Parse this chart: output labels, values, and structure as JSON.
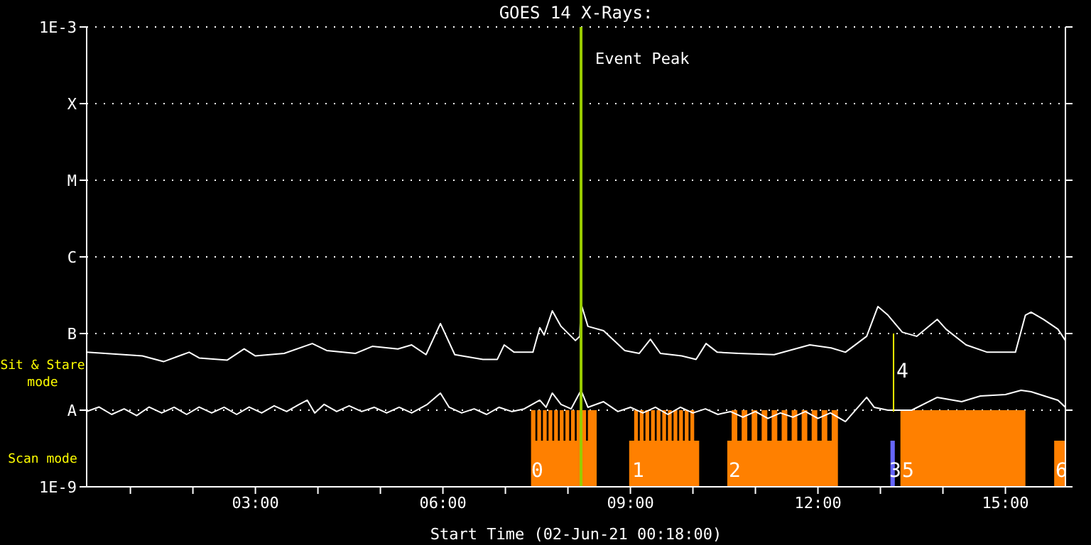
{
  "chart_data": {
    "type": "line",
    "title": "GOES 14 X-Rays:",
    "xlabel": "Start Time (02-Jun-21 00:18:00)",
    "xlim": [
      0.3,
      15.96
    ],
    "xticks": [
      {
        "value": 1,
        "label": null
      },
      {
        "value": 2,
        "label": null
      },
      {
        "value": 3,
        "label": "03:00"
      },
      {
        "value": 4,
        "label": null
      },
      {
        "value": 5,
        "label": null
      },
      {
        "value": 6,
        "label": "06:00"
      },
      {
        "value": 7,
        "label": null
      },
      {
        "value": 8,
        "label": null
      },
      {
        "value": 9,
        "label": "09:00"
      },
      {
        "value": 10,
        "label": null
      },
      {
        "value": 11,
        "label": null
      },
      {
        "value": 12,
        "label": "12:00"
      },
      {
        "value": 13,
        "label": null
      },
      {
        "value": 14,
        "label": null
      },
      {
        "value": 15,
        "label": "15:00"
      }
    ],
    "ylim": [
      1e-09,
      0.001
    ],
    "yticks": [
      {
        "value": 1e-09,
        "label": "1E-9"
      },
      {
        "value": 1e-08,
        "label": "A"
      },
      {
        "value": 1e-07,
        "label": "B"
      },
      {
        "value": 1e-06,
        "label": "C"
      },
      {
        "value": 1e-05,
        "label": "M"
      },
      {
        "value": 0.0001,
        "label": "X"
      },
      {
        "value": 0.001,
        "label": "1E-3"
      }
    ],
    "log": true,
    "grid": "y",
    "legend": false,
    "series": [
      {
        "color": "#ffffff",
        "x": [
          0.3,
          1.19,
          1.53,
          1.94,
          2.1,
          2.55,
          2.82,
          3.0,
          3.46,
          3.91,
          4.14,
          4.6,
          4.87,
          5.28,
          5.5,
          5.73,
          5.96,
          6.19,
          6.64,
          6.87,
          6.98,
          7.14,
          7.44,
          7.55,
          7.62,
          7.75,
          7.89,
          8.12,
          8.19,
          8.21,
          8.32,
          8.57,
          8.91,
          9.14,
          9.32,
          9.48,
          9.82,
          10.05,
          10.21,
          10.39,
          10.73,
          11.3,
          11.87,
          12.21,
          12.44,
          12.78,
          12.96,
          13.12,
          13.35,
          13.58,
          13.91,
          14.05,
          14.37,
          14.71,
          15.16,
          15.32,
          15.41,
          15.61,
          15.84,
          15.96
        ],
        "values": [
          5.7e-08,
          5.1e-08,
          4.3e-08,
          5.7e-08,
          4.8e-08,
          4.5e-08,
          6.3e-08,
          5.1e-08,
          5.5e-08,
          7.4e-08,
          6e-08,
          5.5e-08,
          6.8e-08,
          6.3e-08,
          7.1e-08,
          5.3e-08,
          1.35e-07,
          5.3e-08,
          4.6e-08,
          4.6e-08,
          7.1e-08,
          5.7e-08,
          5.7e-08,
          1.19e-07,
          9.6e-08,
          1.98e-07,
          1.24e-07,
          8.1e-08,
          9.2e-08,
          2.45e-07,
          1.24e-07,
          1.09e-07,
          6e-08,
          5.5e-08,
          8.4e-08,
          5.5e-08,
          5.1e-08,
          4.6e-08,
          7.4e-08,
          5.7e-08,
          5.5e-08,
          5.3e-08,
          7.1e-08,
          6.5e-08,
          5.7e-08,
          9.2e-08,
          2.25e-07,
          1.74e-07,
          1.04e-07,
          9.2e-08,
          1.53e-07,
          1.14e-07,
          7.1e-08,
          5.7e-08,
          5.7e-08,
          1.74e-07,
          1.9e-07,
          1.53e-07,
          1.14e-07,
          8.1e-08
        ]
      },
      {
        "color": "#ffffff",
        "x": [
          0.3,
          0.5,
          0.7,
          0.9,
          1.1,
          1.3,
          1.5,
          1.7,
          1.9,
          2.1,
          2.3,
          2.5,
          2.7,
          2.9,
          3.1,
          3.3,
          3.5,
          3.7,
          3.83,
          3.95,
          4.1,
          4.3,
          4.5,
          4.7,
          4.9,
          5.1,
          5.3,
          5.5,
          5.75,
          5.96,
          6.1,
          6.3,
          6.5,
          6.7,
          6.9,
          7.1,
          7.3,
          7.55,
          7.65,
          7.75,
          7.89,
          8.05,
          8.21,
          8.32,
          8.57,
          8.8,
          9.0,
          9.2,
          9.4,
          9.6,
          9.8,
          10.0,
          10.2,
          10.4,
          10.6,
          10.8,
          11.0,
          11.2,
          11.4,
          11.6,
          11.8,
          12.0,
          12.2,
          12.44,
          12.78,
          12.9,
          13.12,
          13.5,
          13.91,
          14.3,
          14.6,
          15.0,
          15.25,
          15.41,
          15.84,
          15.96
        ],
        "values": [
          9.6e-09,
          1.1e-08,
          8.8e-09,
          1.04e-08,
          8.5e-09,
          1.1e-08,
          9.2e-09,
          1.09e-08,
          8.8e-09,
          1.1e-08,
          9.2e-09,
          1.09e-08,
          8.8e-09,
          1.1e-08,
          9.2e-09,
          1.14e-08,
          9.6e-09,
          1.19e-08,
          1.35e-08,
          9.2e-09,
          1.19e-08,
          9.6e-09,
          1.14e-08,
          9.6e-09,
          1.09e-08,
          9.2e-09,
          1.09e-08,
          9.2e-09,
          1.19e-08,
          1.67e-08,
          1.09e-08,
          9.2e-09,
          1.04e-08,
          8.8e-09,
          1.09e-08,
          9.6e-09,
          1.04e-08,
          1.35e-08,
          1.09e-08,
          1.67e-08,
          1.19e-08,
          1.04e-08,
          1.82e-08,
          1.09e-08,
          1.29e-08,
          9.6e-09,
          1.09e-08,
          9.2e-09,
          1.09e-08,
          8.8e-09,
          1.09e-08,
          9.2e-09,
          1.04e-08,
          8.8e-09,
          9.6e-09,
          8.1e-09,
          9.6e-09,
          7.8e-09,
          9.2e-09,
          8.1e-09,
          9.6e-09,
          7.8e-09,
          9.2e-09,
          7.1e-09,
          1.47e-08,
          1.09e-08,
          1e-08,
          1e-08,
          1.47e-08,
          1.29e-08,
          1.53e-08,
          1.6e-08,
          1.82e-08,
          1.74e-08,
          1.35e-08,
          1.09e-08
        ]
      },
      {
        "type": "area",
        "color": "#ff8000",
        "x": [
          7.41,
          7.48,
          7.51,
          7.57,
          7.6,
          7.66,
          7.69,
          7.75,
          7.78,
          7.84,
          7.87,
          7.93,
          7.96,
          8.02,
          8.05,
          8.11,
          8.14,
          8.2,
          8.23,
          8.29,
          8.32,
          8.46
        ],
        "values": [
          1e-08,
          4e-09,
          1e-08,
          4e-09,
          1e-08,
          4e-09,
          1e-08,
          4e-09,
          1e-08,
          4e-09,
          1e-08,
          4e-09,
          1e-08,
          4e-09,
          1e-08,
          4e-09,
          1e-08,
          4e-09,
          1e-08,
          4e-09,
          1e-08,
          1e-08
        ]
      },
      {
        "type": "area",
        "color": "#ff8000",
        "x": [
          8.98,
          9.06,
          9.12,
          9.15,
          9.21,
          9.24,
          9.3,
          9.33,
          9.39,
          9.42,
          9.48,
          9.51,
          9.57,
          9.6,
          9.66,
          9.69,
          9.75,
          9.78,
          9.84,
          9.87,
          9.93,
          9.96,
          10.02,
          10.1
        ],
        "values": [
          4e-09,
          1e-08,
          4e-09,
          1e-08,
          4e-09,
          1e-08,
          4e-09,
          1e-08,
          4e-09,
          1e-08,
          4e-09,
          1e-08,
          4e-09,
          1e-08,
          4e-09,
          1e-08,
          4e-09,
          1e-08,
          4e-09,
          1e-08,
          4e-09,
          1e-08,
          4e-09,
          4e-09
        ]
      },
      {
        "type": "area",
        "color": "#ff8000",
        "x": [
          10.55,
          10.62,
          10.71,
          10.78,
          10.87,
          10.94,
          11.03,
          11.1,
          11.19,
          11.26,
          11.35,
          11.42,
          11.51,
          11.58,
          11.67,
          11.74,
          11.83,
          11.9,
          11.99,
          12.06,
          12.15,
          12.22,
          12.32
        ],
        "values": [
          4e-09,
          1e-08,
          4e-09,
          1e-08,
          4e-09,
          1e-08,
          4e-09,
          1e-08,
          4e-09,
          1e-08,
          4e-09,
          1e-08,
          4e-09,
          1e-08,
          4e-09,
          1e-08,
          4e-09,
          1e-08,
          4e-09,
          1e-08,
          4e-09,
          1e-08,
          1e-08
        ]
      },
      {
        "type": "area",
        "color": "#ff8000",
        "x": [
          13.32,
          15.32
        ],
        "values": [
          1e-08,
          1e-08
        ]
      },
      {
        "type": "area",
        "color": "#ff8000",
        "x": [
          15.78,
          15.96
        ],
        "values": [
          4e-09,
          4e-09
        ]
      },
      {
        "type": "area",
        "color": "#6666ff",
        "x": [
          13.16,
          13.23
        ],
        "values": [
          4e-09,
          4e-09
        ]
      },
      {
        "color": "#ffff00",
        "x": [
          13.21,
          13.21
        ],
        "values": [
          9.6e-09,
          1e-07
        ]
      }
    ],
    "ref_lines": [
      {
        "axis": "x",
        "value": 8.21,
        "label": "Event Peak",
        "color": "#99cc00"
      }
    ],
    "annotations": [
      "Sit & Stare mode",
      "Scan mode",
      "0",
      "1",
      "2",
      "3",
      "5",
      "4",
      "6"
    ]
  }
}
